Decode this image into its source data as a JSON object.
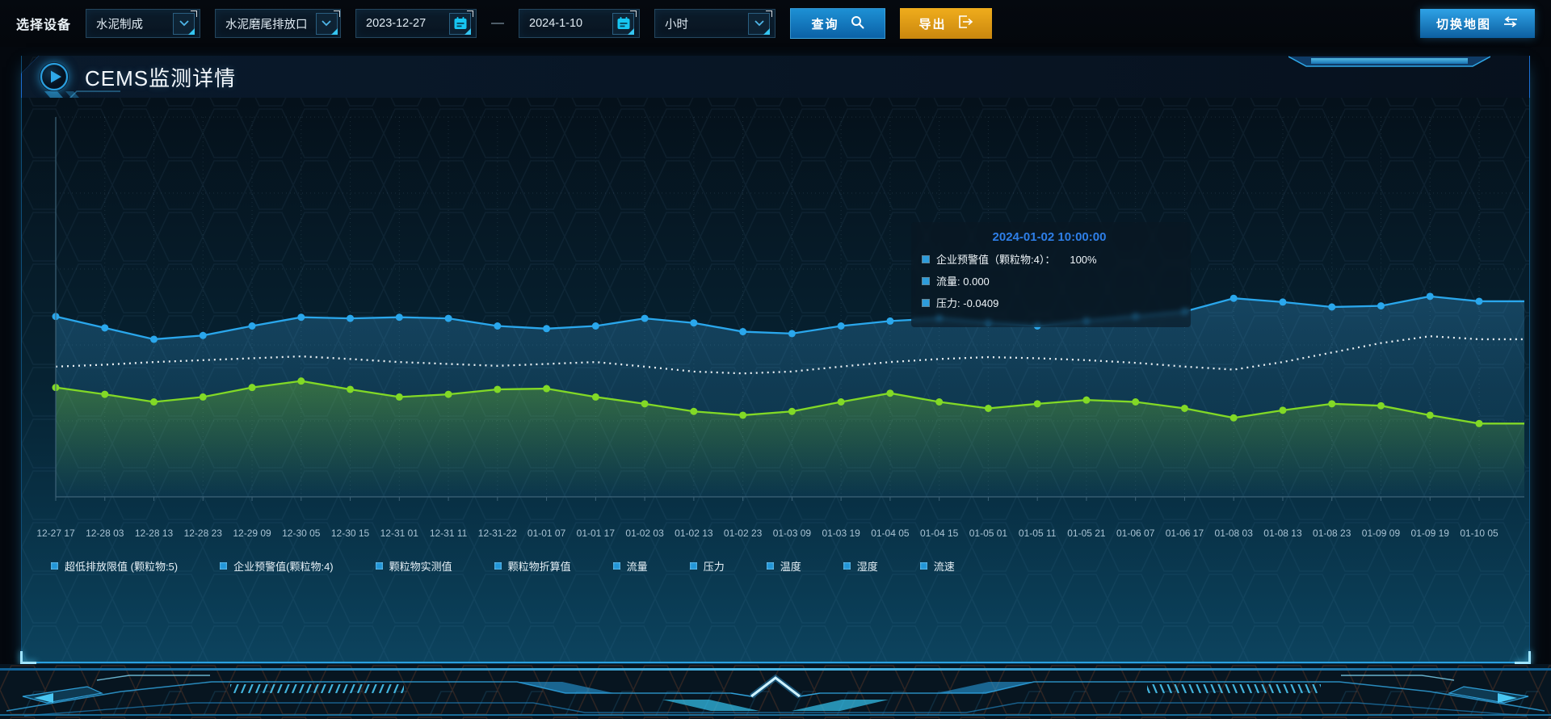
{
  "toolbar": {
    "device_label": "选择设备",
    "device_select": {
      "value": "水泥制成"
    },
    "outlet_select": {
      "value": "水泥磨尾排放口"
    },
    "date_start": "2023-12-27",
    "date_separator": "—",
    "date_end": "2024-1-10",
    "interval_select": {
      "value": "小时"
    },
    "query_label": "查询",
    "export_label": "导出",
    "switch_map_label": "切换地图"
  },
  "panel": {
    "title": "CEMS监测详情"
  },
  "chart": {
    "tooltip": {
      "title": "2024-01-02 10:00:00",
      "rows": [
        {
          "label": "企业预警值（颗粒物:4）：",
          "value": "100%"
        },
        {
          "label": "流量:",
          "value": "0.000"
        },
        {
          "label": "压力:",
          "value": "-0.0409"
        }
      ]
    }
  },
  "chart_data": {
    "type": "line",
    "title": "",
    "xlabel": "",
    "ylabel": "",
    "ylim": [
      0,
      100
    ],
    "y_axis_labels_visible": false,
    "grid": true,
    "legend_position": "bottom",
    "categories": [
      "12-27 17",
      "12-28 03",
      "12-28 13",
      "12-28 23",
      "12-29 09",
      "12-30 05",
      "12-30 15",
      "12-31 01",
      "12-31 11",
      "12-31-22",
      "01-01 07",
      "01-01 17",
      "01-02 03",
      "01-02 13",
      "01-02 23",
      "01-03 09",
      "01-03 19",
      "01-04 05",
      "01-04 15",
      "01-05 01",
      "01-05 11",
      "01-05 21",
      "01-06 07",
      "01-06 17",
      "01-08 03",
      "01-08 13",
      "01-08 23",
      "01-09 09",
      "01-09 19",
      "01-10 05"
    ],
    "series": [
      {
        "name": "blue-line",
        "color": "#2aa7ec",
        "dash": "",
        "markers": true,
        "area": true,
        "area_from": "rgba(58,160,220,0.30)",
        "area_to": "rgba(58,160,220,0.05)",
        "values": [
          47.5,
          44.5,
          41.5,
          42.5,
          45,
          47.3,
          47,
          47.3,
          47,
          45,
          44.3,
          45,
          47,
          45.8,
          43.5,
          43,
          45,
          46.3,
          47,
          45.8,
          45,
          46.3,
          47.5,
          48.8,
          52.3,
          51.3,
          50,
          50.3,
          52.8,
          51.5
        ]
      },
      {
        "name": "white-dotted-line",
        "color": "#e8eef2",
        "dash": "2 5",
        "markers": false,
        "area": false,
        "area_from": "",
        "area_to": "",
        "values": [
          34.3,
          34.8,
          35.5,
          36,
          36.5,
          37,
          36.3,
          35.5,
          35,
          34.5,
          35,
          35.5,
          34.3,
          33,
          32.5,
          33,
          34.3,
          35.5,
          36.3,
          36.8,
          36.5,
          36,
          35.3,
          34.3,
          33.5,
          35.5,
          38,
          40.5,
          42.3,
          41.5
        ]
      },
      {
        "name": "green-line",
        "color": "#82d926",
        "dash": "",
        "markers": true,
        "area": true,
        "area_from": "rgba(130,217,38,0.32)",
        "area_to": "rgba(130,217,38,0)",
        "values": [
          28.8,
          27,
          25,
          26.3,
          28.8,
          30.5,
          28.3,
          26.3,
          27,
          28.3,
          28.5,
          26.3,
          24.5,
          22.5,
          21.5,
          22.5,
          25,
          27.3,
          25,
          23.3,
          24.5,
          25.5,
          25,
          23.3,
          20.8,
          22.8,
          24.5,
          24,
          21.5,
          19.3
        ]
      }
    ],
    "legend": [
      "超低排放限值 (颗粒物:5)",
      "企业预警值(颗粒物:4)",
      "颗粒物实测值",
      "颗粒物折算值",
      "流量",
      "压力",
      "温度",
      "湿度",
      "流速"
    ]
  }
}
